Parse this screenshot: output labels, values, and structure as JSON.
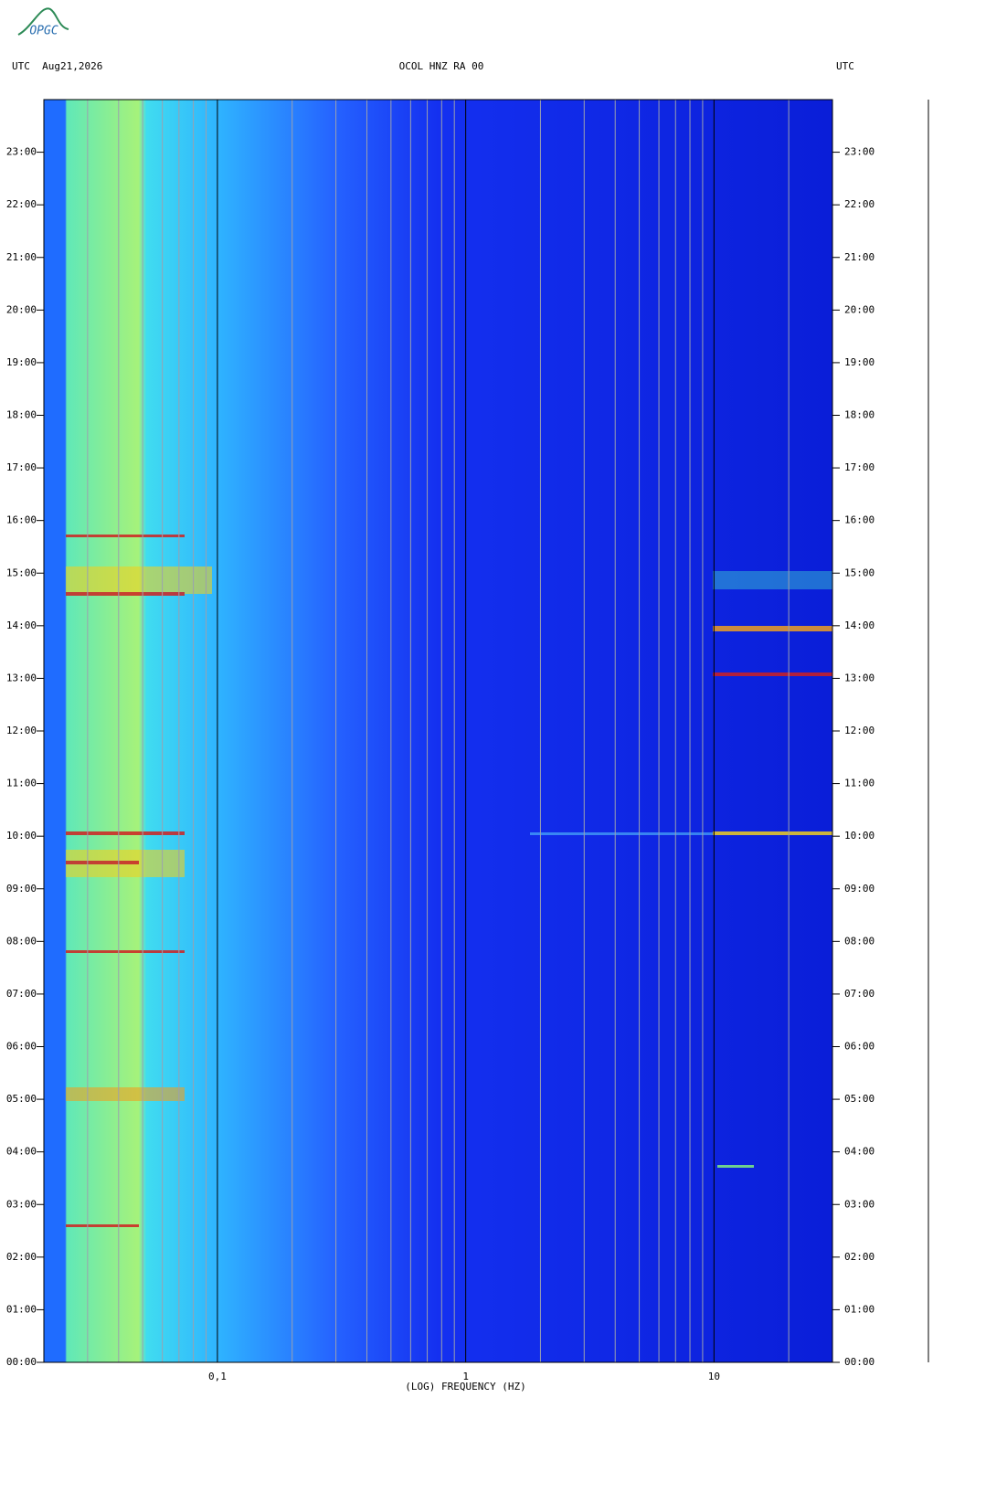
{
  "chart_data": {
    "type": "spectrogram",
    "logo": "OPGC",
    "header_left": "UTC  Aug21,2026",
    "title": "OCOL HNZ RA 00",
    "header_right": "UTC",
    "xlabel": "(LOG) FREQUENCY (HZ)",
    "xscale": "log",
    "xlim": [
      0.02,
      30
    ],
    "xticks": [
      {
        "value": 0.1,
        "label": "0,1"
      },
      1,
      10
    ],
    "xgrid_minor": [
      0.03,
      0.04,
      0.05,
      0.06,
      0.07,
      0.08,
      0.09,
      0.2,
      0.3,
      0.4,
      0.5,
      0.6,
      0.7,
      0.8,
      0.9,
      2,
      3,
      4,
      5,
      6,
      7,
      8,
      9,
      20,
      30
    ],
    "ylim": [
      0,
      24
    ],
    "yticks": [
      {
        "value": 0,
        "label": "00:00"
      },
      {
        "value": 1,
        "label": "01:00"
      },
      {
        "value": 2,
        "label": "02:00"
      },
      {
        "value": 3,
        "label": "03:00"
      },
      {
        "value": 4,
        "label": "04:00"
      },
      {
        "value": 5,
        "label": "05:00"
      },
      {
        "value": 6,
        "label": "06:00"
      },
      {
        "value": 7,
        "label": "07:00"
      },
      {
        "value": 8,
        "label": "08:00"
      },
      {
        "value": 9,
        "label": "09:00"
      },
      {
        "value": 10,
        "label": "10:00"
      },
      {
        "value": 11,
        "label": "11:00"
      },
      {
        "value": 12,
        "label": "12:00"
      },
      {
        "value": 13,
        "label": "13:00"
      },
      {
        "value": 14,
        "label": "14:00"
      },
      {
        "value": 15,
        "label": "15:00"
      },
      {
        "value": 16,
        "label": "16:00"
      },
      {
        "value": 17,
        "label": "17:00"
      },
      {
        "value": 18,
        "label": "18:00"
      },
      {
        "value": 19,
        "label": "19:00"
      },
      {
        "value": 20,
        "label": "20:00"
      },
      {
        "value": 21,
        "label": "21:00"
      },
      {
        "value": 22,
        "label": "22:00"
      },
      {
        "value": 23,
        "label": "23:00"
      }
    ]
  }
}
